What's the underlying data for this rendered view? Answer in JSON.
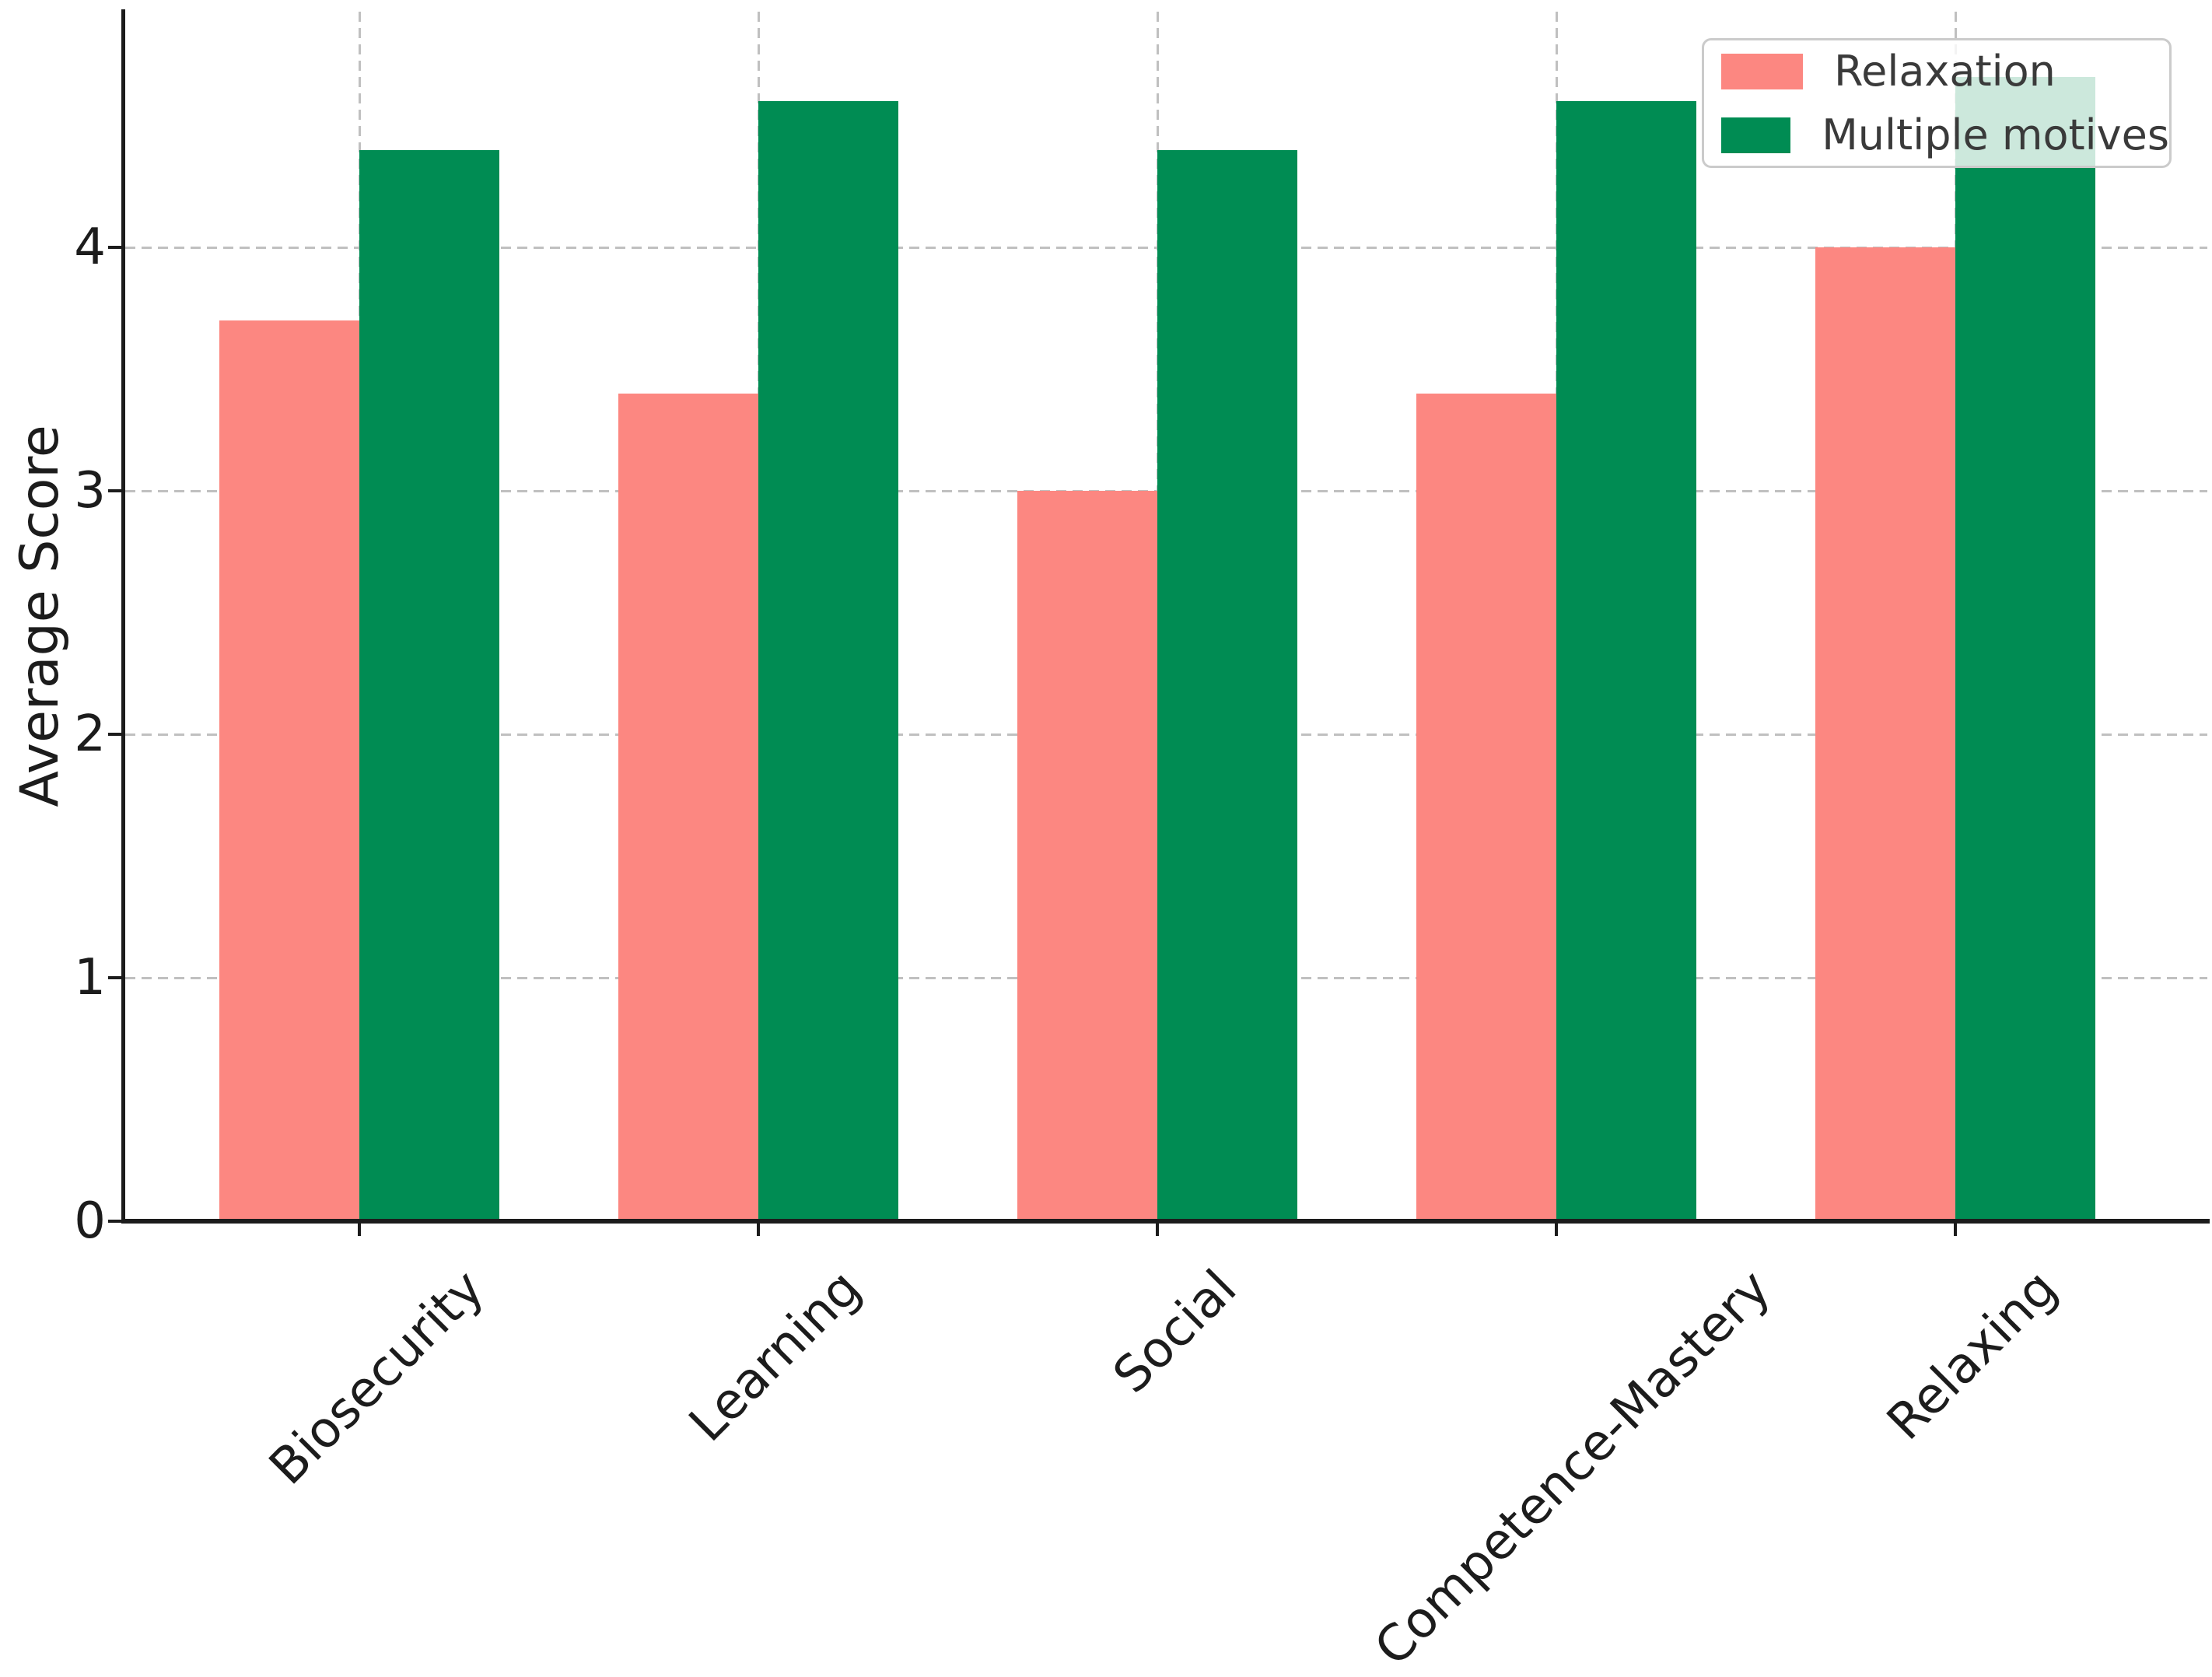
{
  "chart_data": {
    "type": "bar",
    "title": "",
    "xlabel": "",
    "ylabel": "Average Score",
    "categories": [
      "Biosecurity",
      "Learning",
      "Social",
      "Competence-Mastery",
      "Relaxing"
    ],
    "series": [
      {
        "name": "Relaxation",
        "color": "#FC8781",
        "values": [
          3.7,
          3.4,
          3.0,
          3.4,
          4.0
        ]
      },
      {
        "name": "Multiple motives",
        "color": "#008C53",
        "values": [
          4.4,
          4.6,
          4.4,
          4.6,
          4.7
        ]
      }
    ],
    "yticks": [
      "0",
      "1",
      "2",
      "3",
      "4"
    ],
    "ylim": [
      0,
      5
    ],
    "x_tick_rotation_deg": 45,
    "grid": {
      "style": "dashed",
      "axes": "both",
      "color": "#c0c0c0"
    },
    "axis_color": "#1c1c1c",
    "text_color": "#1c1c1c",
    "legend": {
      "position": "upper right",
      "border_color": "#cbcbcb",
      "background": "rgba(255,255,255,0.8)"
    }
  }
}
